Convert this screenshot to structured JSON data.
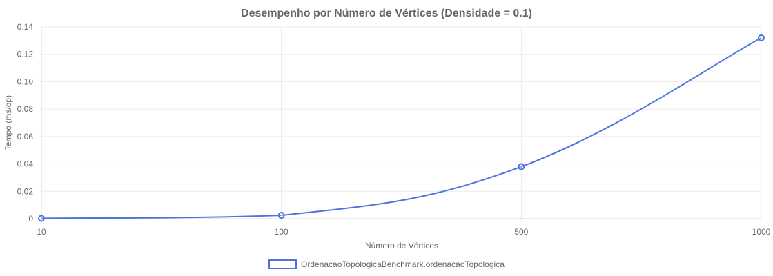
{
  "chart_data": {
    "type": "line",
    "title": "Desempenho por Número de Vértices (Densidade = 0.1)",
    "xlabel": "Número de Vértices",
    "ylabel": "Tempo (ms/op)",
    "categories": [
      "10",
      "100",
      "500",
      "1000"
    ],
    "ylim": [
      0,
      0.14
    ],
    "yticks": [
      "0",
      "0.02",
      "0.04",
      "0.06",
      "0.08",
      "0.10",
      "0.12",
      "0.14"
    ],
    "grid": true,
    "legend_position": "bottom",
    "series": [
      {
        "name": "OrdenacaoTopologicaBenchmark.ordenacaoTopologica",
        "values": [
          0.0003,
          0.0025,
          0.038,
          0.132
        ],
        "color": "#4e73df"
      }
    ]
  }
}
